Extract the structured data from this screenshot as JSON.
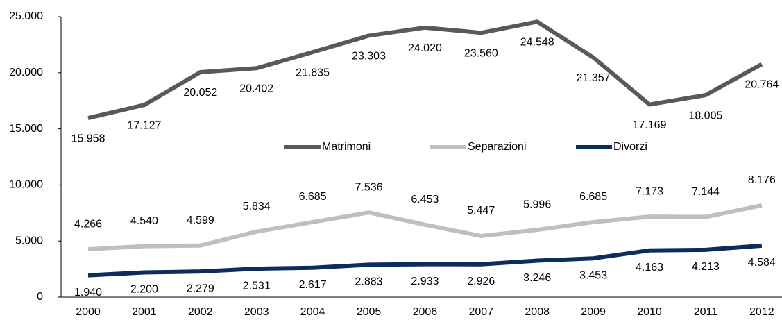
{
  "chart_data": {
    "type": "line",
    "categories": [
      "2000",
      "2001",
      "2002",
      "2003",
      "2004",
      "2005",
      "2006",
      "2007",
      "2008",
      "2009",
      "2010",
      "2011",
      "2012"
    ],
    "series": [
      {
        "name": "Matrimoni",
        "color": "#595959",
        "values": [
          15958,
          17127,
          20052,
          20402,
          21835,
          23303,
          24020,
          23560,
          24548,
          21357,
          17169,
          18005,
          20764
        ],
        "value_labels": [
          "15.958",
          "17.127",
          "20.052",
          "20.402",
          "21.835",
          "23.303",
          "24.020",
          "23.560",
          "24.548",
          "21.357",
          "17.169",
          "18.005",
          "20.764"
        ]
      },
      {
        "name": "Separazioni",
        "color": "#bfbfbf",
        "values": [
          4266,
          4540,
          4599,
          5834,
          6685,
          7536,
          6453,
          5447,
          5996,
          6685,
          7173,
          7144,
          8176
        ],
        "value_labels": [
          "4.266",
          "4.540",
          "4.599",
          "5.834",
          "6.685",
          "7.536",
          "6.453",
          "5.447",
          "5.996",
          "6.685",
          "7.173",
          "7.144",
          "8.176"
        ]
      },
      {
        "name": "Divorzi",
        "color": "#0d2b5b",
        "values": [
          1940,
          2200,
          2279,
          2531,
          2617,
          2883,
          2933,
          2926,
          3246,
          3453,
          4163,
          4213,
          4584
        ],
        "value_labels": [
          "1.940",
          "2.200",
          "2.279",
          "2.531",
          "2.617",
          "2.883",
          "2.933",
          "2.926",
          "3.246",
          "3.453",
          "4.163",
          "4.213",
          "4.584"
        ]
      }
    ],
    "ylim": [
      0,
      25000
    ],
    "yticks": [
      0,
      {
        "value": 5000,
        "label": "5.000"
      },
      {
        "value": 10000,
        "label": "10.000"
      },
      {
        "value": 15000,
        "label": "15.000"
      },
      {
        "value": 20000,
        "label": "20.000"
      },
      {
        "value": 25000,
        "label": "25.000"
      }
    ],
    "legend": "center"
  }
}
